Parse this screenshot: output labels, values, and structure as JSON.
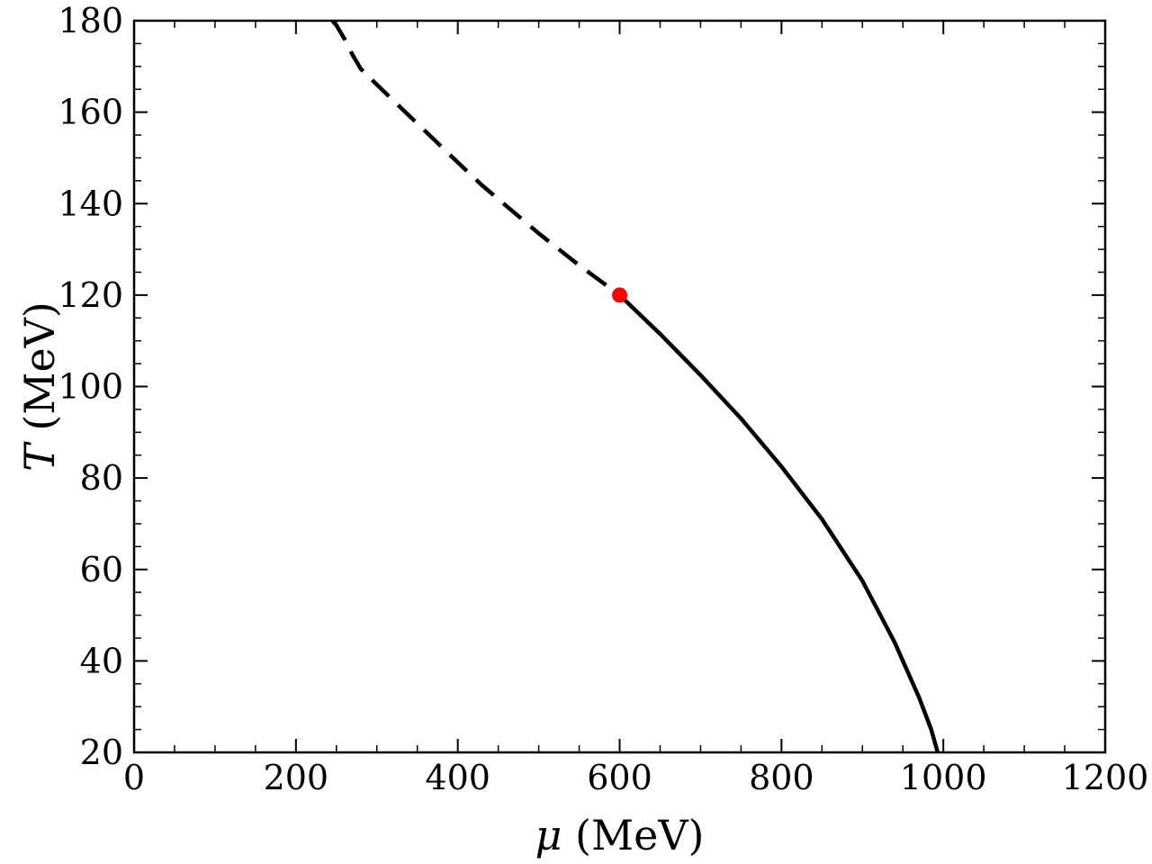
{
  "chart_data": {
    "type": "line",
    "xlabel_symbol": "μ",
    "xlabel_unit": "(MeV)",
    "ylabel_symbol": "T",
    "ylabel_unit": "(MeV)",
    "xlim": [
      0,
      1200
    ],
    "ylim": [
      20,
      180
    ],
    "x_ticks": [
      0,
      200,
      400,
      600,
      800,
      1000,
      1200
    ],
    "y_ticks": [
      20,
      40,
      60,
      80,
      100,
      120,
      140,
      160,
      180
    ],
    "x_minor_step": 50,
    "y_minor_step": 5,
    "grid": false,
    "series": [
      {
        "style": "dashed",
        "color": "#000000",
        "x": [
          245,
          250,
          260,
          270,
          280,
          300,
          350,
          400,
          430,
          450,
          500,
          550,
          600
        ],
        "y": [
          180,
          179,
          176,
          172.5,
          169.5,
          166,
          157.5,
          149,
          144,
          141,
          133.5,
          126.5,
          120
        ]
      },
      {
        "style": "solid",
        "color": "#000000",
        "x": [
          600,
          650,
          700,
          750,
          800,
          850,
          900,
          940,
          970,
          985,
          993
        ],
        "y": [
          120,
          111.5,
          102.5,
          93,
          82.5,
          71,
          57.5,
          44,
          32,
          25,
          20
        ]
      }
    ],
    "critical_point": {
      "x": 600,
      "y": 120,
      "color": "#ff0000"
    }
  }
}
